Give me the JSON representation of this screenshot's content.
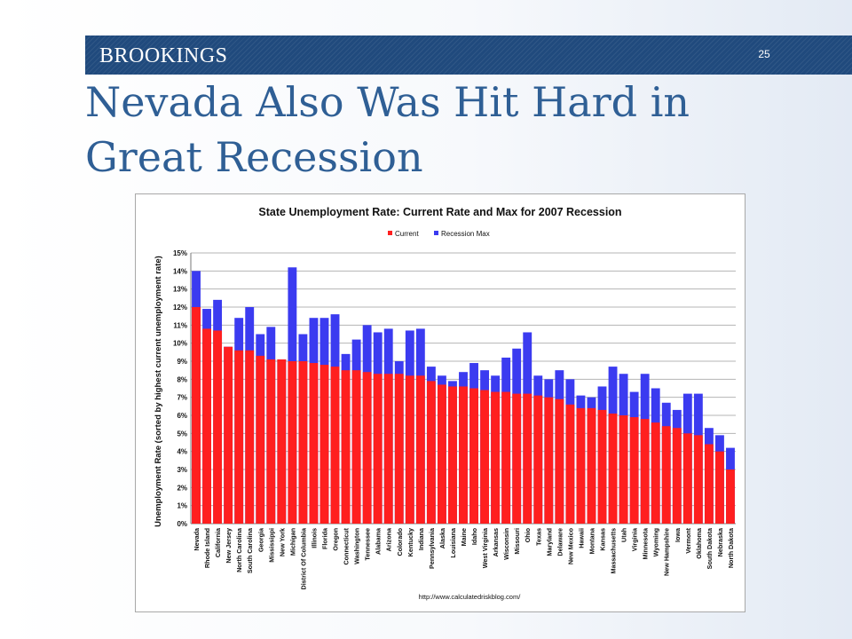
{
  "slide": {
    "brand": "BROOKINGS",
    "page_number": "25",
    "title_line1": "Nevada Also Was Hit Hard in",
    "title_line2": "Great Recession",
    "colors": {
      "header_bar": "#204a7d",
      "title": "#2f5f95"
    }
  },
  "chart_data": {
    "type": "bar",
    "stacked": false,
    "overlay": true,
    "title": "State Unemployment Rate: Current Rate and Max for 2007 Recession",
    "ylabel": "Unemployment Rate (sorted by highest current unemployment rate)",
    "xlabel": "",
    "ylim": [
      0,
      15
    ],
    "yticks": [
      "0%",
      "1%",
      "2%",
      "3%",
      "4%",
      "5%",
      "6%",
      "7%",
      "8%",
      "9%",
      "10%",
      "11%",
      "12%",
      "13%",
      "14%",
      "15%"
    ],
    "grid": true,
    "legend_position": "top",
    "source": "http://www.calculatedriskblog.com/",
    "categories": [
      "Nevada",
      "Rhode Island",
      "California",
      "New Jersey",
      "North Carolina",
      "South Carolina",
      "Georgia",
      "Mississippi",
      "New York",
      "Michigan",
      "District Of Columbia",
      "Illinois",
      "Florida",
      "Oregon",
      "Connecticut",
      "Washington",
      "Tennessee",
      "Alabama",
      "Arizona",
      "Colorado",
      "Kentucky",
      "Indiana",
      "Pennsylvania",
      "Alaska",
      "Louisiana",
      "Maine",
      "Idaho",
      "West Virginia",
      "Arkansas",
      "Wisconsin",
      "Missouri",
      "Ohio",
      "Texas",
      "Maryland",
      "Delaware",
      "New Mexico",
      "Hawaii",
      "Montana",
      "Kansas",
      "Massachusetts",
      "Utah",
      "Virginia",
      "Minnesota",
      "Wyoming",
      "New Hampshire",
      "Iowa",
      "Vermont",
      "Oklahoma",
      "South Dakota",
      "Nebraska",
      "North Dakota"
    ],
    "series": [
      {
        "name": "Current",
        "color": "#ff1f1f",
        "values": [
          12.0,
          10.8,
          10.7,
          9.8,
          9.6,
          9.6,
          9.3,
          9.1,
          9.1,
          9.0,
          9.0,
          8.9,
          8.8,
          8.7,
          8.5,
          8.5,
          8.4,
          8.3,
          8.3,
          8.3,
          8.2,
          8.2,
          7.9,
          7.7,
          7.6,
          7.6,
          7.5,
          7.4,
          7.3,
          7.3,
          7.2,
          7.2,
          7.1,
          7.0,
          6.9,
          6.6,
          6.4,
          6.4,
          6.3,
          6.1,
          6.0,
          5.9,
          5.8,
          5.6,
          5.4,
          5.3,
          5.0,
          4.9,
          4.4,
          4.0,
          3.0
        ]
      },
      {
        "name": "Recession Max",
        "color": "#3b3bf0",
        "values": [
          14.0,
          11.9,
          12.4,
          9.8,
          11.4,
          12.0,
          10.5,
          10.9,
          9.1,
          14.2,
          10.5,
          11.4,
          11.4,
          11.6,
          9.4,
          10.2,
          11.0,
          10.6,
          10.8,
          9.0,
          10.7,
          10.8,
          8.7,
          8.2,
          7.9,
          8.4,
          8.9,
          8.5,
          8.2,
          9.2,
          9.7,
          10.6,
          8.2,
          8.0,
          8.5,
          8.0,
          7.1,
          7.0,
          7.6,
          8.7,
          8.3,
          7.3,
          8.3,
          7.5,
          6.7,
          6.3,
          7.2,
          7.2,
          5.3,
          4.9,
          4.2
        ]
      }
    ]
  }
}
